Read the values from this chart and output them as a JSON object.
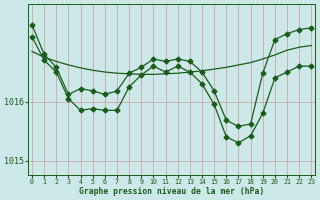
{
  "xlabel": "Graphe pression niveau de la mer (hPa)",
  "background_color": "#cce8e8",
  "plot_bg_color": "#cce8e8",
  "grid_color": "#aacccc",
  "line_color": "#1a5c1a",
  "x_values": [
    0,
    1,
    2,
    3,
    4,
    5,
    6,
    7,
    8,
    9,
    10,
    11,
    12,
    13,
    14,
    15,
    16,
    17,
    18,
    19,
    20,
    21,
    22,
    23
  ],
  "series1": [
    1016.85,
    1016.75,
    1016.68,
    1016.62,
    1016.57,
    1016.53,
    1016.5,
    1016.48,
    1016.47,
    1016.46,
    1016.46,
    1016.47,
    1016.48,
    1016.5,
    1016.52,
    1016.55,
    1016.58,
    1016.62,
    1016.66,
    1016.72,
    1016.79,
    1016.87,
    1016.92,
    1016.95
  ],
  "series2": [
    1017.1,
    1016.7,
    1016.5,
    1016.05,
    1015.85,
    1015.88,
    1015.85,
    1015.85,
    1016.25,
    1016.45,
    1016.6,
    1016.5,
    1016.6,
    1016.5,
    1016.3,
    1015.95,
    1015.4,
    1015.3,
    1015.42,
    1015.8,
    1016.4,
    1016.5,
    1016.6,
    1016.6
  ],
  "series3": [
    1017.3,
    1016.8,
    1016.58,
    1016.12,
    1016.22,
    1016.18,
    1016.12,
    1016.18,
    1016.48,
    1016.58,
    1016.72,
    1016.68,
    1016.72,
    1016.68,
    1016.5,
    1016.18,
    1015.68,
    1015.58,
    1015.62,
    1016.48,
    1017.05,
    1017.15,
    1017.22,
    1017.25
  ],
  "ylim_min": 1014.75,
  "ylim_max": 1017.65,
  "yticks": [
    1015.0,
    1016.0
  ],
  "marker_size": 2.5,
  "linewidth": 0.9
}
